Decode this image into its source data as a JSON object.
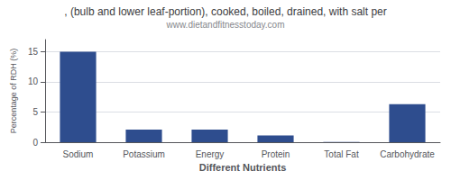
{
  "chart_data": {
    "type": "bar",
    "title": ", (bulb and lower leaf-portion), cooked, boiled, drained, with salt per",
    "subtitle": "www.dietandfitnesstoday.com",
    "xlabel": "Different Nutrients",
    "ylabel": "Percentage of RDH (%)",
    "categories": [
      "Sodium",
      "Potassium",
      "Energy",
      "Protein",
      "Total Fat",
      "Carbohydrate"
    ],
    "values": [
      15,
      2.1,
      2.1,
      1.1,
      0.05,
      6.3
    ],
    "color": "#2e4d8e",
    "ylim": [
      0,
      17
    ],
    "yticks": [
      0,
      5,
      10,
      15
    ],
    "grid": true
  }
}
